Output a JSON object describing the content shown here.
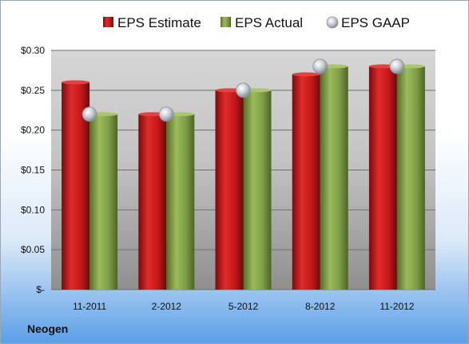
{
  "company": "Neogen",
  "chart_data": {
    "type": "bar",
    "title": "",
    "xlabel": "",
    "ylabel": "",
    "categories": [
      "11-2011",
      "2-2012",
      "5-2012",
      "8-2012",
      "11-2012"
    ],
    "series": [
      {
        "name": "EPS Estimate",
        "type": "bar",
        "color": "#cc1f1f",
        "values": [
          0.26,
          0.22,
          0.25,
          0.27,
          0.28
        ]
      },
      {
        "name": "EPS Actual",
        "type": "bar",
        "color": "#7f9e46",
        "values": [
          0.22,
          0.22,
          0.25,
          0.28,
          0.28
        ]
      },
      {
        "name": "EPS GAAP",
        "type": "scatter",
        "color": "#c8ccd2",
        "values": [
          0.22,
          0.22,
          0.25,
          0.28,
          0.28
        ]
      }
    ],
    "ylim": [
      0,
      0.3
    ],
    "y_ticks": [
      0,
      0.05,
      0.1,
      0.15,
      0.2,
      0.25,
      0.3
    ],
    "y_tick_labels": [
      "$-",
      "$0.05",
      "$0.10",
      "$0.15",
      "$0.20",
      "$0.25",
      "$0.30"
    ],
    "grid": true,
    "legend_position": "top"
  }
}
